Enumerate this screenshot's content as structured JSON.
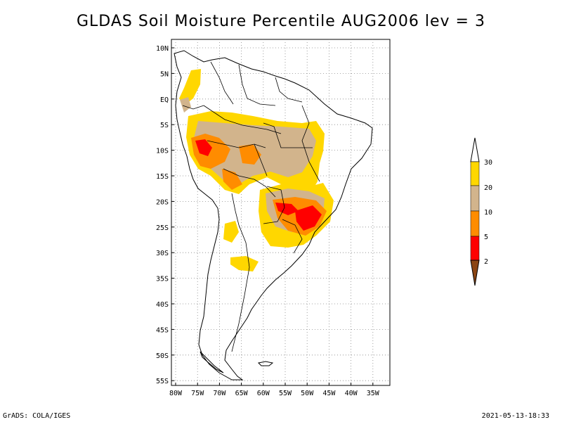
{
  "title": "GLDAS Soil Moisture Percentile AUG2006 lev = 3",
  "footer": {
    "left": "GrADS: COLA/IGES",
    "right": "2021-05-13-18:33"
  },
  "colors": {
    "brown": "#8B4513",
    "red": "#FF0000",
    "orange": "#FF8C00",
    "tan": "#D2B48C",
    "gold": "#FFD700",
    "white": "#FFFFFF"
  },
  "map": {
    "lon_range": [
      -81,
      -31
    ],
    "lat_range": [
      -56,
      11
    ],
    "lon_ticks": [
      "80W",
      "75W",
      "70W",
      "65W",
      "60W",
      "55W",
      "50W",
      "45W",
      "40W",
      "35W"
    ],
    "lat_ticks": [
      "10N",
      "5N",
      "EQ",
      "5S",
      "10S",
      "15S",
      "20S",
      "25S",
      "30S",
      "35S",
      "40S",
      "45S",
      "50S",
      "55S"
    ],
    "grid": "dotted"
  },
  "legend": {
    "labels": [
      "30",
      "20",
      "10",
      "5",
      "2"
    ]
  }
}
